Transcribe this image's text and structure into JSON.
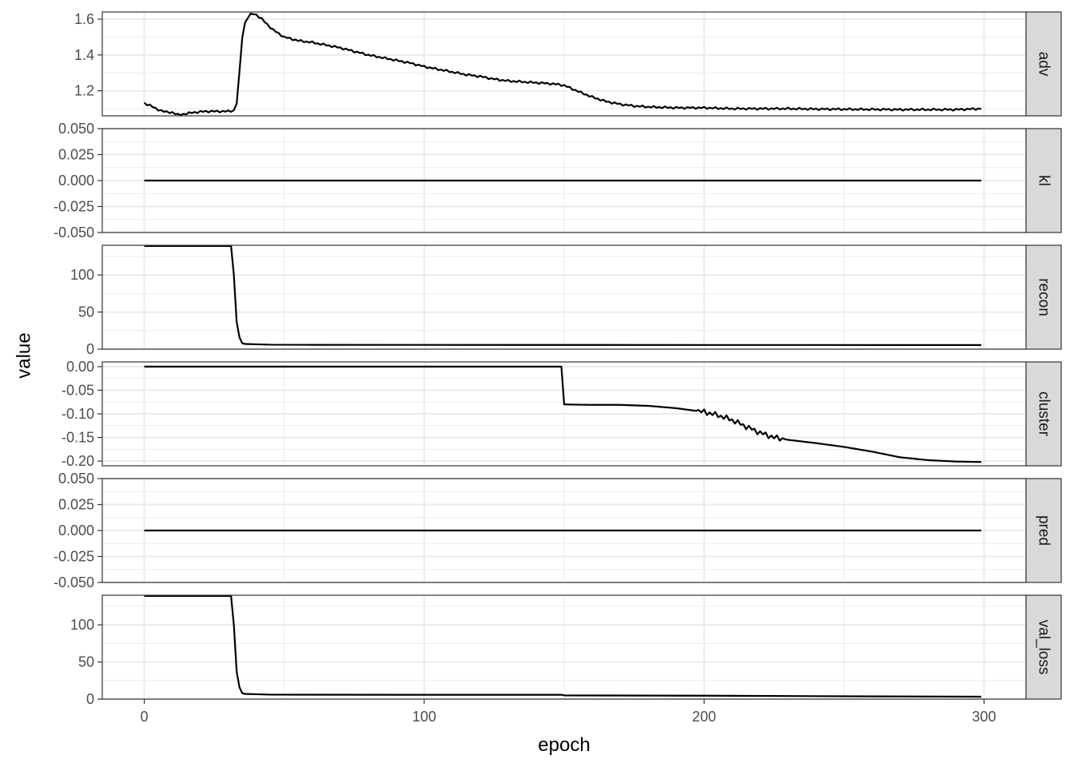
{
  "chart_data": {
    "type": "line",
    "facet": "rows",
    "xlabel": "epoch",
    "ylabel": "value",
    "xlim": [
      -15,
      315
    ],
    "x_ticks": [
      0,
      100,
      200,
      300
    ],
    "x_tick_labels": [
      "0",
      "100",
      "200",
      "300"
    ],
    "grid": true,
    "line_color": "#000000",
    "strip_fill": "#d9d9d9",
    "grid_color": "#ebebeb",
    "panels": [
      {
        "name": "adv",
        "ylim": [
          1.06,
          1.64
        ],
        "y_ticks": [
          1.2,
          1.4,
          1.6
        ],
        "y_tick_labels": [
          "1.2",
          "1.4",
          "1.6"
        ],
        "points": [
          [
            0,
            1.13
          ],
          [
            2,
            1.12
          ],
          [
            4,
            1.1
          ],
          [
            6,
            1.09
          ],
          [
            8,
            1.08
          ],
          [
            10,
            1.08
          ],
          [
            12,
            1.065
          ],
          [
            14,
            1.07
          ],
          [
            16,
            1.075
          ],
          [
            18,
            1.08
          ],
          [
            22,
            1.085
          ],
          [
            26,
            1.085
          ],
          [
            30,
            1.085
          ],
          [
            32,
            1.09
          ],
          [
            33,
            1.13
          ],
          [
            34,
            1.3
          ],
          [
            35,
            1.5
          ],
          [
            36,
            1.58
          ],
          [
            37,
            1.61
          ],
          [
            38,
            1.625
          ],
          [
            39,
            1.63
          ],
          [
            40,
            1.625
          ],
          [
            42,
            1.6
          ],
          [
            44,
            1.57
          ],
          [
            46,
            1.54
          ],
          [
            48,
            1.52
          ],
          [
            50,
            1.5
          ],
          [
            55,
            1.48
          ],
          [
            60,
            1.47
          ],
          [
            65,
            1.455
          ],
          [
            70,
            1.44
          ],
          [
            75,
            1.42
          ],
          [
            80,
            1.4
          ],
          [
            85,
            1.385
          ],
          [
            90,
            1.37
          ],
          [
            95,
            1.355
          ],
          [
            100,
            1.335
          ],
          [
            105,
            1.32
          ],
          [
            110,
            1.305
          ],
          [
            115,
            1.29
          ],
          [
            120,
            1.28
          ],
          [
            125,
            1.265
          ],
          [
            130,
            1.255
          ],
          [
            135,
            1.25
          ],
          [
            140,
            1.245
          ],
          [
            145,
            1.24
          ],
          [
            148,
            1.235
          ],
          [
            150,
            1.23
          ],
          [
            153,
            1.21
          ],
          [
            156,
            1.19
          ],
          [
            160,
            1.165
          ],
          [
            165,
            1.14
          ],
          [
            170,
            1.125
          ],
          [
            175,
            1.115
          ],
          [
            180,
            1.11
          ],
          [
            190,
            1.105
          ],
          [
            200,
            1.105
          ],
          [
            210,
            1.1
          ],
          [
            220,
            1.1
          ],
          [
            230,
            1.1
          ],
          [
            240,
            1.098
          ],
          [
            250,
            1.097
          ],
          [
            260,
            1.096
          ],
          [
            270,
            1.095
          ],
          [
            280,
            1.095
          ],
          [
            290,
            1.095
          ],
          [
            299,
            1.1
          ]
        ],
        "noise_amplitude": 0.006
      },
      {
        "name": "kl",
        "ylim": [
          -0.05,
          0.05
        ],
        "y_ticks": [
          -0.05,
          -0.025,
          0,
          0.025,
          0.05
        ],
        "y_tick_labels": [
          "-0.050",
          "-0.025",
          "0.000",
          "0.025",
          "0.050"
        ],
        "points": [
          [
            0,
            0
          ],
          [
            299,
            0
          ]
        ],
        "noise_amplitude": 0
      },
      {
        "name": "recon",
        "ylim": [
          0,
          140
        ],
        "y_ticks": [
          0,
          50,
          100
        ],
        "y_tick_labels": [
          "0",
          "50",
          "100"
        ],
        "points": [
          [
            0,
            139
          ],
          [
            31,
            139
          ],
          [
            32,
            100
          ],
          [
            33,
            37
          ],
          [
            34,
            16
          ],
          [
            35,
            8
          ],
          [
            36,
            7
          ],
          [
            40,
            6.5
          ],
          [
            45,
            6
          ],
          [
            60,
            5.8
          ],
          [
            100,
            5.7
          ],
          [
            200,
            5.6
          ],
          [
            299,
            5.5
          ]
        ],
        "noise_amplitude": 0
      },
      {
        "name": "cluster",
        "ylim": [
          -0.21,
          0.01
        ],
        "y_ticks": [
          -0.2,
          -0.15,
          -0.1,
          -0.05,
          0
        ],
        "y_tick_labels": [
          "-0.20",
          "-0.15",
          "-0.10",
          "-0.05",
          "0.00"
        ],
        "points": [
          [
            0,
            0
          ],
          [
            149,
            0
          ],
          [
            150,
            -0.08
          ],
          [
            160,
            -0.081
          ],
          [
            170,
            -0.081
          ],
          [
            180,
            -0.083
          ],
          [
            190,
            -0.088
          ],
          [
            200,
            -0.096
          ],
          [
            205,
            -0.103
          ],
          [
            210,
            -0.113
          ],
          [
            215,
            -0.127
          ],
          [
            220,
            -0.14
          ],
          [
            225,
            -0.15
          ],
          [
            230,
            -0.155
          ],
          [
            240,
            -0.162
          ],
          [
            250,
            -0.17
          ],
          [
            260,
            -0.18
          ],
          [
            270,
            -0.192
          ],
          [
            280,
            -0.198
          ],
          [
            290,
            -0.201
          ],
          [
            299,
            -0.202
          ]
        ],
        "noise_amplitude": 0.006,
        "noise_range": [
          198,
          228
        ]
      },
      {
        "name": "pred",
        "ylim": [
          -0.05,
          0.05
        ],
        "y_ticks": [
          -0.05,
          -0.025,
          0,
          0.025,
          0.05
        ],
        "y_tick_labels": [
          "-0.050",
          "-0.025",
          "0.000",
          "0.025",
          "0.050"
        ],
        "points": [
          [
            0,
            0
          ],
          [
            299,
            0
          ]
        ],
        "noise_amplitude": 0
      },
      {
        "name": "val_loss",
        "ylim": [
          0,
          140
        ],
        "y_ticks": [
          0,
          50,
          100
        ],
        "y_tick_labels": [
          "0",
          "50",
          "100"
        ],
        "points": [
          [
            0,
            139
          ],
          [
            31,
            139
          ],
          [
            32,
            100
          ],
          [
            33,
            37
          ],
          [
            34,
            16
          ],
          [
            35,
            8
          ],
          [
            36,
            7
          ],
          [
            40,
            6.5
          ],
          [
            45,
            6
          ],
          [
            100,
            5.8
          ],
          [
            149,
            5.8
          ],
          [
            150,
            5
          ],
          [
            200,
            4.6
          ],
          [
            250,
            3.8
          ],
          [
            299,
            3.2
          ]
        ],
        "noise_amplitude": 0
      }
    ]
  }
}
